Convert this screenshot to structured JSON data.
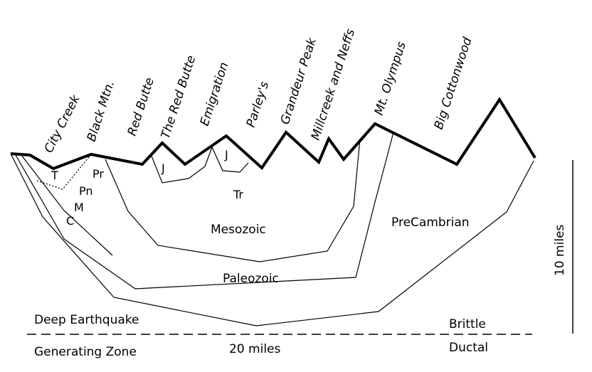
{
  "canyons": [
    "City Creek",
    "Black Mtn.",
    "Red Butte",
    "The Red Butte",
    "Emigration",
    "Parley's",
    "Grandeur Peak",
    "Millcreek and Neffs",
    "Mt. Olympus",
    "Big Cottonwood"
  ],
  "units": {
    "t": "T",
    "pr": "Pr",
    "pn": "Pn",
    "m": "M",
    "c": "C",
    "j1": "J",
    "j2": "J",
    "tr": "Tr",
    "mesozoic": "Mesozoic",
    "paleozoic": "Paleozoic",
    "precambrian": "PreCambrian"
  },
  "zones": {
    "deep_line1": "Deep Earthquake",
    "deep_line2": "Generating Zone",
    "brittle": "Brittle",
    "ductal": "Ductal"
  },
  "scale": {
    "horizontal": "20 miles",
    "vertical": "10 miles"
  },
  "colors": {
    "line": "#000000",
    "background": "#ffffff"
  }
}
